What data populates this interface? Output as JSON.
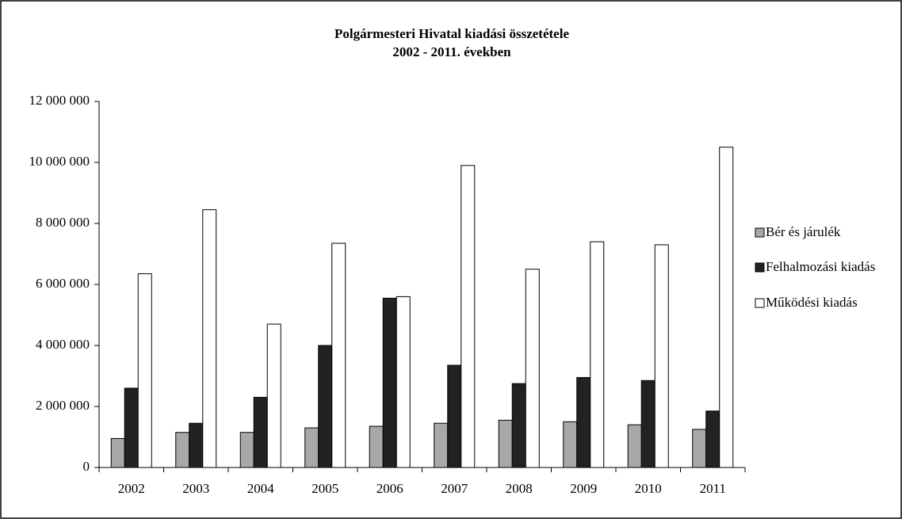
{
  "chart_data": {
    "type": "bar",
    "title": "Polgármesteri Hivatal kiadási összetétele",
    "subtitle": "2002 - 2011. években",
    "categories": [
      "2002",
      "2003",
      "2004",
      "2005",
      "2006",
      "2007",
      "2008",
      "2009",
      "2010",
      "2011"
    ],
    "series": [
      {
        "name": "Bér és járulék",
        "color": "#a8a8a8",
        "values": [
          950000,
          1150000,
          1150000,
          1300000,
          1350000,
          1450000,
          1550000,
          1500000,
          1400000,
          1250000
        ]
      },
      {
        "name": "Felhalmozási kiadás",
        "color": "#222222",
        "values": [
          2600000,
          1450000,
          2300000,
          4000000,
          5550000,
          3350000,
          2750000,
          2950000,
          2850000,
          1850000
        ]
      },
      {
        "name": "Működési kiadás",
        "color": "#ffffff",
        "values": [
          6350000,
          8450000,
          4700000,
          7350000,
          5600000,
          9900000,
          6500000,
          7400000,
          7300000,
          10500000
        ]
      }
    ],
    "ylim": [
      0,
      12000000
    ],
    "yticks": [
      0,
      {
        "value": 2000000,
        "label": "2 000 000"
      },
      {
        "value": 4000000,
        "label": "4 000 000"
      },
      {
        "value": 6000000,
        "label": "6 000 000"
      },
      {
        "value": 8000000,
        "label": "8 000 000"
      },
      {
        "value": 10000000,
        "label": "10 000 000"
      },
      {
        "value": 12000000,
        "label": "12 000 000"
      }
    ],
    "legend": "right"
  }
}
